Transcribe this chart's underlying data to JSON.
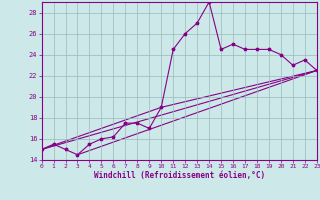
{
  "xlabel": "Windchill (Refroidissement éolien,°C)",
  "xlim": [
    0,
    23
  ],
  "ylim": [
    14,
    29
  ],
  "yticks": [
    14,
    16,
    18,
    20,
    22,
    24,
    26,
    28
  ],
  "xticks": [
    0,
    1,
    2,
    3,
    4,
    5,
    6,
    7,
    8,
    9,
    10,
    11,
    12,
    13,
    14,
    15,
    16,
    17,
    18,
    19,
    20,
    21,
    22,
    23
  ],
  "bg_color": "#cce8e8",
  "line_color": "#880088",
  "grid_color": "#99bbbb",
  "series": [
    [
      0,
      15.0
    ],
    [
      1,
      15.5
    ],
    [
      2,
      15.0
    ],
    [
      3,
      14.5
    ],
    [
      4,
      15.5
    ],
    [
      5,
      16.0
    ],
    [
      6,
      16.2
    ],
    [
      7,
      17.5
    ],
    [
      8,
      17.5
    ],
    [
      9,
      17.0
    ],
    [
      10,
      19.0
    ],
    [
      11,
      24.5
    ],
    [
      12,
      26.0
    ],
    [
      13,
      27.0
    ],
    [
      14,
      29.0
    ],
    [
      15,
      24.5
    ],
    [
      16,
      25.0
    ],
    [
      17,
      24.5
    ],
    [
      18,
      24.5
    ],
    [
      19,
      24.5
    ],
    [
      20,
      24.0
    ],
    [
      21,
      23.0
    ],
    [
      22,
      23.5
    ],
    [
      23,
      22.5
    ]
  ],
  "line2": [
    [
      0,
      15.0
    ],
    [
      23,
      22.5
    ]
  ],
  "line3": [
    [
      3,
      14.5
    ],
    [
      23,
      22.5
    ]
  ],
  "line4": [
    [
      0,
      15.0
    ],
    [
      10,
      19.0
    ],
    [
      23,
      22.5
    ]
  ]
}
